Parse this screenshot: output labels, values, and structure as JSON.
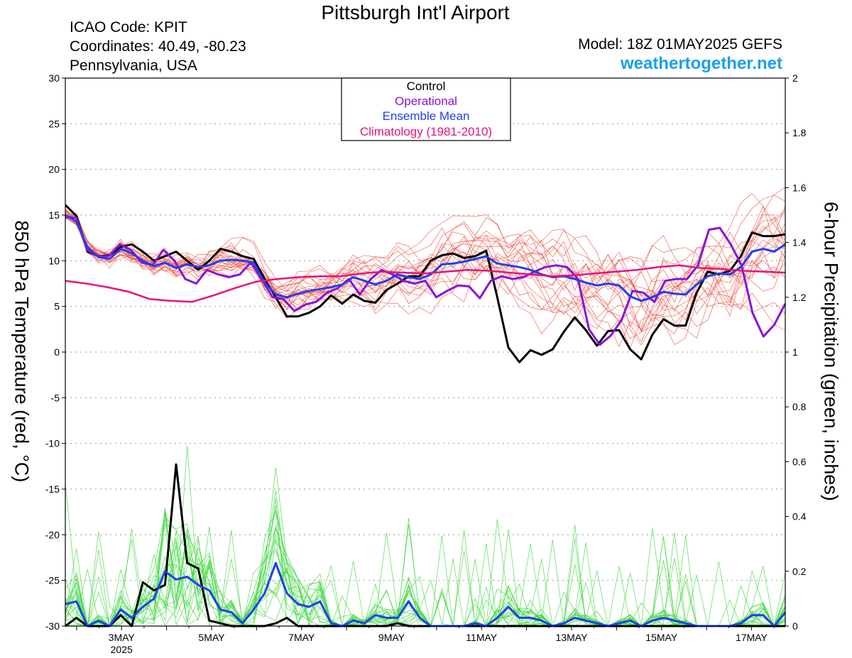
{
  "header": {
    "title": "Pittsburgh Int'l Airport",
    "icao": "ICAO Code: KPIT",
    "coordinates": "Coordinates: 40.49, -80.23",
    "region": "Pennsylvania, USA",
    "model": "Model: 18Z 01MAY2025 GEFS",
    "website": "weathertogether.net"
  },
  "colors": {
    "control": "#000000",
    "operational": "#8a12d8",
    "ensemble_mean": "#1f3ff2",
    "climatology": "#e8127a",
    "members_temp": "#f05040",
    "members_precip": "#40d840",
    "website": "#1a9ff0"
  },
  "chart_data": {
    "type": "line",
    "title": "Pittsburgh Int'l Airport",
    "ylabel_left": "850 hPa Temperature (red, °C)",
    "ylabel_right": "6-hour Precipitation (green, inches)",
    "ylim_left": [
      -30,
      30
    ],
    "ylim_right": [
      0,
      2
    ],
    "yticks_left": [
      "30",
      "25",
      "20",
      "15",
      "10",
      "5",
      "0",
      "-5",
      "-10",
      "-15",
      "-20",
      "-25",
      "-30"
    ],
    "yticks_right": [
      "2",
      "1.8",
      "1.6",
      "1.4",
      "1.2",
      "1",
      "0.8",
      "0.6",
      "0.4",
      "0.2",
      "0"
    ],
    "xticks": [
      "3MAY",
      "5MAY",
      "7MAY",
      "9MAY",
      "11MAY",
      "13MAY",
      "15MAY",
      "17MAY"
    ],
    "xsublabel": "2025",
    "x_range_days": [
      1.75,
      17.75
    ],
    "grid": true,
    "legend_position": "top-center",
    "legend": [
      "Control",
      "Operational",
      "Ensemble Mean",
      "Climatology (1981-2010)"
    ],
    "series": [
      {
        "name": "Control",
        "axis": "temperature",
        "color": "#000000",
        "values": [
          16.1,
          14.9,
          11.0,
          10.5,
          10.6,
          11.5,
          11.8,
          11.0,
          10.0,
          10.5,
          11.0,
          10.0,
          9.0,
          10.0,
          11.3,
          11.0,
          10.5,
          10.2,
          8.0,
          6.0,
          3.9,
          3.9,
          4.3,
          5.0,
          6.2,
          5.3,
          6.3,
          5.6,
          5.4,
          6.8,
          7.5,
          8.3,
          8.3,
          10.0,
          10.6,
          10.8,
          10.3,
          10.5,
          11.1,
          6.0,
          0.5,
          -1.1,
          0.2,
          -0.3,
          0.3,
          2.2,
          3.8,
          2.4,
          0.7,
          2.3,
          2.4,
          0.3,
          -0.8,
          1.9,
          3.6,
          2.9,
          2.9,
          6.5,
          8.8,
          8.5,
          8.9,
          10.5,
          13.1,
          12.7,
          12.7,
          12.9
        ]
      },
      {
        "name": "Operational",
        "axis": "temperature",
        "color": "#8a12d8",
        "values": [
          14.8,
          14.7,
          11.2,
          10.5,
          10.5,
          11.8,
          11.2,
          9.8,
          9.5,
          11.2,
          10.0,
          8.0,
          7.5,
          9.0,
          8.5,
          8.2,
          8.5,
          9.8,
          8.0,
          6.0,
          5.8,
          4.5,
          5.2,
          5.5,
          6.5,
          7.0,
          8.0,
          6.3,
          8.0,
          9.0,
          8.5,
          7.8,
          7.5,
          7.8,
          6.0,
          6.7,
          7.3,
          7.2,
          5.9,
          7.8,
          8.3,
          8.0,
          8.2,
          8.8,
          9.3,
          9.5,
          9.3,
          8.0,
          2.5,
          0.8,
          1.8,
          3.5,
          6.7,
          6.5,
          5.5,
          7.8,
          8.0,
          8.0,
          9.5,
          13.4,
          13.6,
          11.8,
          9.5,
          4.3,
          1.7,
          3.0,
          5.3
        ]
      },
      {
        "name": "Ensemble Mean",
        "axis": "temperature",
        "color": "#1f3ff2",
        "values": [
          15.0,
          14.3,
          11.5,
          10.4,
          10.2,
          11.3,
          10.8,
          10.0,
          9.4,
          9.8,
          9.2,
          9.6,
          9.3,
          9.5,
          10.0,
          10.1,
          10.0,
          9.8,
          7.6,
          6.3,
          6.0,
          6.4,
          6.7,
          6.9,
          7.1,
          7.4,
          8.2,
          7.8,
          7.4,
          7.8,
          8.5,
          8.2,
          8.0,
          8.5,
          9.6,
          9.7,
          9.9,
          10.2,
          10.5,
          9.7,
          9.5,
          9.3,
          9.0,
          8.5,
          8.2,
          8.3,
          8.0,
          7.6,
          7.3,
          7.5,
          7.3,
          6.1,
          5.6,
          6.0,
          6.6,
          6.4,
          6.3,
          7.4,
          8.3,
          8.6,
          8.5,
          9.3,
          11.0,
          11.3,
          11.0,
          11.8
        ]
      },
      {
        "name": "Climatology (1981-2010)",
        "axis": "temperature",
        "color": "#e8127a",
        "values": [
          7.8,
          7.5,
          7.1,
          6.6,
          5.8,
          5.6,
          5.5,
          6.2,
          7.0,
          7.7,
          8.0,
          8.2,
          8.3,
          8.3,
          8.6,
          8.8,
          8.7,
          8.6,
          8.8,
          9.0,
          8.9,
          8.7,
          8.5,
          8.3,
          8.4,
          8.6,
          8.8,
          9.0,
          9.3,
          9.5,
          9.2,
          9.1,
          8.9,
          8.8,
          8.7
        ],
        "x_step": "12 hours"
      },
      {
        "name": "Control precipitation",
        "axis": "precipitation",
        "color": "#000000",
        "values": [
          0.0,
          0.03,
          0.0,
          0.0,
          0.0,
          0.04,
          0.0,
          0.16,
          0.13,
          0.15,
          0.59,
          0.23,
          0.21,
          0.02,
          0.01,
          0.0,
          0.0,
          0.0,
          0.0,
          0.01,
          0.03,
          0.0,
          0.0,
          0.0,
          0.0,
          0.0,
          0.0,
          0.0,
          0.0,
          0.0,
          0.01,
          0.0,
          0.0,
          0.0,
          0.0,
          0.0,
          0.0,
          0.0,
          0.0,
          0.0,
          0.0,
          0.0,
          0.0,
          0.0,
          0.0,
          0.0,
          0.0,
          0.0,
          0.0,
          0.0,
          0.0,
          0.0,
          0.0,
          0.0,
          0.0,
          0.0,
          0.0,
          0.0,
          0.0,
          0.0,
          0.0,
          0.0,
          0.0,
          0.0,
          0.0,
          0.0
        ]
      },
      {
        "name": "Ensemble Mean precipitation",
        "axis": "precipitation",
        "color": "#1f3ff2",
        "values": [
          0.08,
          0.09,
          0.0,
          0.02,
          0.0,
          0.06,
          0.03,
          0.07,
          0.1,
          0.2,
          0.17,
          0.18,
          0.15,
          0.13,
          0.06,
          0.05,
          0.01,
          0.06,
          0.12,
          0.23,
          0.12,
          0.08,
          0.07,
          0.09,
          0.01,
          0.0,
          0.02,
          0.01,
          0.04,
          0.03,
          0.03,
          0.09,
          0.03,
          0.0,
          0.0,
          0.0,
          0.0,
          0.01,
          0.0,
          0.03,
          0.07,
          0.03,
          0.03,
          0.02,
          0.0,
          0.01,
          0.03,
          0.02,
          0.01,
          0.0,
          0.01,
          0.02,
          0.0,
          0.02,
          0.03,
          0.02,
          0.01,
          0.0,
          0.0,
          0.0,
          0.0,
          0.01,
          0.04,
          0.04,
          0.0,
          0.05
        ]
      }
    ],
    "ensemble_members": "21 thin red temperature traces and 21 thin green precipitation traces"
  }
}
